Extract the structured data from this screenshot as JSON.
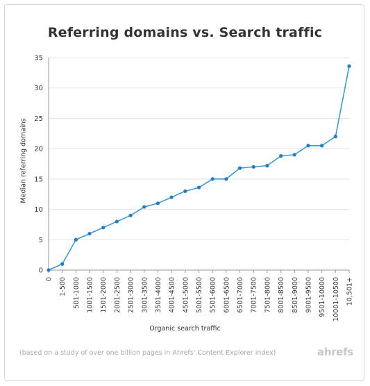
{
  "chart_data": {
    "type": "line",
    "title": "Referring domains vs. Search traffic",
    "xlabel": "Organic search traffic",
    "ylabel": "Median referring domains",
    "categories": [
      "0",
      "1-500",
      "501-1000",
      "1001-1500",
      "1501-2000",
      "2001-2500",
      "2501-3000",
      "3001-3500",
      "3501-4000",
      "4001-4500",
      "4501-5000",
      "5001-5500",
      "5501-6000",
      "6001-6500",
      "6501-7000",
      "7001-7500",
      "7501-8000",
      "8001-8500",
      "8501-9000",
      "9001-9500",
      "9501-10000",
      "10001-10500",
      "10,501+"
    ],
    "values": [
      0,
      1,
      5,
      6,
      7,
      8,
      9,
      10.4,
      11,
      12,
      13,
      13.6,
      15,
      15,
      16.8,
      17,
      17.2,
      18.8,
      19,
      20.5,
      20.5,
      22,
      33.6
    ],
    "ylim": [
      0,
      35
    ],
    "yticks": [
      0,
      5,
      10,
      15,
      20,
      25,
      30,
      35
    ],
    "grid": true,
    "line_color": "#3a9ad9"
  },
  "footer": {
    "note": "(based on a study of over one billion pages in Ahrefs' Content Explorer index)",
    "logo": "ahrefs"
  }
}
